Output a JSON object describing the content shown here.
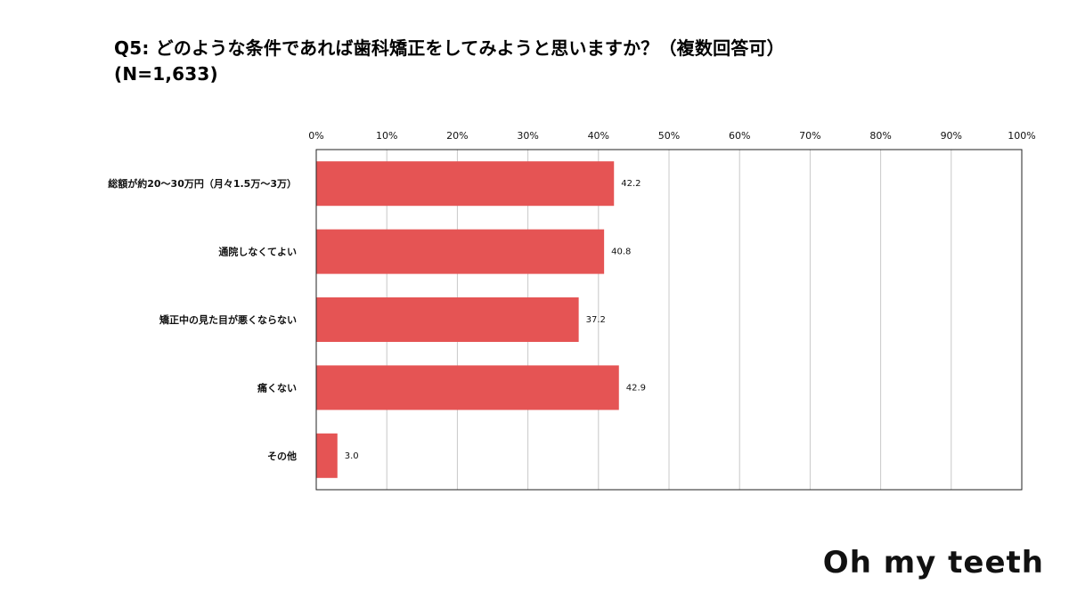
{
  "header": {
    "title_line1": "Q5: どのような条件であれば歯科矯正をしてみようと思いますか？（複数回答可）",
    "title_line2": "(N=1,633)"
  },
  "brand": {
    "logo_text": "Oh my teeth"
  },
  "colors": {
    "bar": "#e55454",
    "grid": "#c8c8c8"
  },
  "chart_data": {
    "type": "bar",
    "orientation": "horizontal",
    "title": "Q5: どのような条件であれば歯科矯正をしてみようと思いますか？（複数回答可） (N=1,633)",
    "categories": [
      "総額が約20〜30万円（月々1.5万〜3万）",
      "通院しなくてよい",
      "矯正中の見た目が悪くならない",
      "痛くない",
      "その他"
    ],
    "values": [
      42.2,
      40.8,
      37.2,
      42.9,
      3.0
    ],
    "value_labels": [
      "42.2",
      "40.8",
      "37.2",
      "42.9",
      "3.0"
    ],
    "xlim": [
      0,
      100
    ],
    "xticks": [
      0,
      10,
      20,
      30,
      40,
      50,
      60,
      70,
      80,
      90,
      100
    ],
    "xtick_labels": [
      "0%",
      "10%",
      "20%",
      "30%",
      "40%",
      "50%",
      "60%",
      "70%",
      "80%",
      "90%",
      "100%"
    ],
    "xlabel": "",
    "ylabel": "",
    "grid": true,
    "legend": "none"
  }
}
